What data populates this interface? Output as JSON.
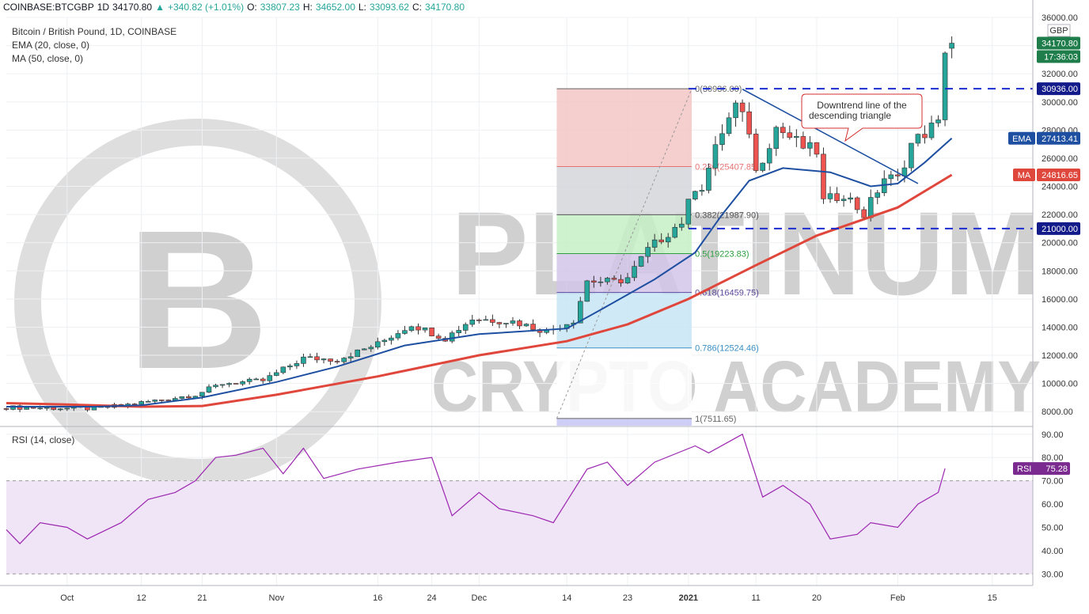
{
  "header": {
    "symbol": "COINBASE:BTCGBP",
    "interval": "1D",
    "last": "34170.80",
    "change": "+340.82 (+1.01%)",
    "open_label": "O:",
    "open": "33807.23",
    "high_label": "H:",
    "high": "34652.00",
    "low_label": "L:",
    "low": "33093.62",
    "close_label": "C:",
    "close": "34170.80"
  },
  "legend": {
    "title": "Bitcoin / British Pound, 1D, COINBASE",
    "ema": "EMA (20, close, 0)",
    "ma": "MA (50, close, 0)",
    "rsi": "RSI (14, close)"
  },
  "watermark": {
    "line1": "PLATINUM",
    "line2": "CRYPTO ACADEMY"
  },
  "annotation": {
    "line1": "Downtrend line of the",
    "line2": "descending triangle"
  },
  "colors": {
    "up": "#26a69a",
    "candle_up_fill": "#26a69a",
    "candle_down_fill": "#ef5350",
    "ema": "#1e4fa0",
    "ma": "#e0473c",
    "rsi": "#9c27b0",
    "rsi_band": "#f0e4f7",
    "level_line": "#1a2ccf",
    "price_tag": "#1e7d4a",
    "time_tag": "#1e7d4a"
  },
  "chart_data": {
    "type": "candlestick",
    "currency": "GBP",
    "price_axis": {
      "min": 7000,
      "max": 36000,
      "ticks": [
        "36000.00",
        "34000.00",
        "32000.00",
        "30000.00",
        "28000.00",
        "26000.00",
        "24000.00",
        "22000.00",
        "20000.00",
        "18000.00",
        "16000.00",
        "14000.00",
        "12000.00",
        "10000.00",
        "8000.00"
      ]
    },
    "rsi_axis": {
      "min": 25,
      "max": 93,
      "ticks": [
        "90.00",
        "80.00",
        "70.00",
        "60.00",
        "50.00",
        "40.00",
        "30.00"
      ],
      "band": [
        30,
        70
      ]
    },
    "time_axis": {
      "start": "2020-09-22",
      "end": "2021-02-21",
      "labels": [
        {
          "date": "2020-10-01",
          "text": "Oct"
        },
        {
          "date": "2020-10-12",
          "text": "12"
        },
        {
          "date": "2020-10-21",
          "text": "21"
        },
        {
          "date": "2020-11-01",
          "text": "Nov"
        },
        {
          "date": "2020-11-16",
          "text": "16"
        },
        {
          "date": "2020-11-24",
          "text": "24"
        },
        {
          "date": "2020-12-01",
          "text": "Dec"
        },
        {
          "date": "2020-12-14",
          "text": "14"
        },
        {
          "date": "2020-12-23",
          "text": "23"
        },
        {
          "date": "2021-01-01",
          "text": "2021"
        },
        {
          "date": "2021-01-11",
          "text": "11"
        },
        {
          "date": "2021-01-20",
          "text": "20"
        },
        {
          "date": "2021-02-01",
          "text": "Feb"
        },
        {
          "date": "2021-02-15",
          "text": "15"
        }
      ]
    },
    "close_anchors": [
      [
        "2020-09-22",
        8300
      ],
      [
        "2020-10-05",
        8200
      ],
      [
        "2020-10-10",
        8500
      ],
      [
        "2020-10-20",
        9200
      ],
      [
        "2020-10-24",
        10000
      ],
      [
        "2020-10-30",
        10200
      ],
      [
        "2020-11-05",
        11800
      ],
      [
        "2020-11-10",
        11700
      ],
      [
        "2020-11-16",
        12800
      ],
      [
        "2020-11-21",
        14200
      ],
      [
        "2020-11-26",
        13200
      ],
      [
        "2020-11-30",
        14600
      ],
      [
        "2020-12-06",
        14400
      ],
      [
        "2020-12-11",
        13700
      ],
      [
        "2020-12-15",
        14500
      ],
      [
        "2020-12-17",
        17300
      ],
      [
        "2020-12-21",
        17200
      ],
      [
        "2020-12-23",
        17500
      ],
      [
        "2020-12-26",
        19500
      ],
      [
        "2020-12-31",
        21500
      ],
      [
        "2021-01-02",
        24000
      ],
      [
        "2021-01-03",
        24000
      ],
      [
        "2021-01-06",
        27900
      ],
      [
        "2021-01-08",
        29700
      ],
      [
        "2021-01-10",
        28000
      ],
      [
        "2021-01-11",
        25000
      ],
      [
        "2021-01-14",
        28200
      ],
      [
        "2021-01-18",
        26800
      ],
      [
        "2021-01-20",
        26500
      ],
      [
        "2021-01-21",
        22900
      ],
      [
        "2021-01-24",
        23500
      ],
      [
        "2021-01-27",
        22000
      ],
      [
        "2021-01-30",
        24600
      ],
      [
        "2021-02-01",
        24500
      ],
      [
        "2021-02-03",
        27000
      ],
      [
        "2021-02-06",
        28200
      ],
      [
        "2021-02-07",
        28400
      ],
      [
        "2021-02-08",
        33830
      ],
      [
        "2021-02-09",
        34170.8
      ]
    ],
    "rsi_anchors": [
      [
        "2020-09-22",
        49
      ],
      [
        "2020-09-24",
        43
      ],
      [
        "2020-09-27",
        52
      ],
      [
        "2020-10-01",
        50
      ],
      [
        "2020-10-04",
        45
      ],
      [
        "2020-10-09",
        52
      ],
      [
        "2020-10-13",
        62
      ],
      [
        "2020-10-17",
        65
      ],
      [
        "2020-10-20",
        70
      ],
      [
        "2020-10-23",
        80
      ],
      [
        "2020-10-26",
        81
      ],
      [
        "2020-10-30",
        84
      ],
      [
        "2020-11-02",
        73
      ],
      [
        "2020-11-05",
        84
      ],
      [
        "2020-11-08",
        71
      ],
      [
        "2020-11-13",
        75
      ],
      [
        "2020-11-19",
        78
      ],
      [
        "2020-11-24",
        80
      ],
      [
        "2020-11-27",
        55
      ],
      [
        "2020-12-01",
        65
      ],
      [
        "2020-12-04",
        58
      ],
      [
        "2020-12-09",
        55
      ],
      [
        "2020-12-12",
        52
      ],
      [
        "2020-12-17",
        75
      ],
      [
        "2020-12-20",
        78
      ],
      [
        "2020-12-23",
        68
      ],
      [
        "2020-12-27",
        78
      ],
      [
        "2021-01-02",
        85
      ],
      [
        "2021-01-04",
        82
      ],
      [
        "2021-01-09",
        90
      ],
      [
        "2021-01-12",
        63
      ],
      [
        "2021-01-15",
        68
      ],
      [
        "2021-01-19",
        60
      ],
      [
        "2021-01-22",
        45
      ],
      [
        "2021-01-26",
        47
      ],
      [
        "2021-01-28",
        52
      ],
      [
        "2021-02-01",
        50
      ],
      [
        "2021-02-04",
        60
      ],
      [
        "2021-02-07",
        65
      ],
      [
        "2021-02-08",
        75.28
      ]
    ],
    "ema": {
      "name": "EMA",
      "last": "27413.41",
      "points": [
        [
          "2020-09-22",
          8350
        ],
        [
          "2020-10-05",
          8350
        ],
        [
          "2020-10-12",
          8450
        ],
        [
          "2020-10-21",
          9000
        ],
        [
          "2020-11-01",
          10100
        ],
        [
          "2020-11-10",
          11200
        ],
        [
          "2020-11-20",
          12700
        ],
        [
          "2020-12-01",
          13500
        ],
        [
          "2020-12-14",
          13900
        ],
        [
          "2020-12-20",
          15500
        ],
        [
          "2020-12-27",
          17400
        ],
        [
          "2021-01-02",
          19300
        ],
        [
          "2021-01-06",
          22000
        ],
        [
          "2021-01-10",
          24400
        ],
        [
          "2021-01-15",
          25300
        ],
        [
          "2021-01-22",
          25000
        ],
        [
          "2021-01-28",
          24000
        ],
        [
          "2021-02-01",
          24200
        ],
        [
          "2021-02-05",
          25700
        ],
        [
          "2021-02-09",
          27413.41
        ]
      ]
    },
    "ma": {
      "name": "MA",
      "last": "24816.65",
      "points": [
        [
          "2020-09-22",
          8600
        ],
        [
          "2020-10-01",
          8500
        ],
        [
          "2020-10-12",
          8350
        ],
        [
          "2020-10-21",
          8400
        ],
        [
          "2020-11-01",
          9200
        ],
        [
          "2020-11-16",
          10500
        ],
        [
          "2020-12-01",
          12000
        ],
        [
          "2020-12-14",
          13000
        ],
        [
          "2020-12-23",
          14200
        ],
        [
          "2021-01-01",
          16000
        ],
        [
          "2021-01-11",
          18400
        ],
        [
          "2021-01-20",
          20500
        ],
        [
          "2021-02-01",
          22500
        ],
        [
          "2021-02-09",
          24816.65
        ]
      ]
    },
    "rsi": {
      "name": "RSI",
      "last": "75.28"
    },
    "price_label": {
      "value": "34170.80",
      "countdown": "17:36:03"
    },
    "horizontal_levels": [
      {
        "value": 30936,
        "label": "30936.00"
      },
      {
        "value": 21000,
        "label": "21000.00"
      }
    ],
    "fibonacci": {
      "start_date": "2020-12-13",
      "end_date": "2021-01-01",
      "low": 7511.65,
      "high": 30936.0,
      "levels": [
        {
          "ratio": 0,
          "value": 30936.0,
          "label": "0(30936.00)",
          "color": "#666666",
          "fill": "#f3c6c6"
        },
        {
          "ratio": 0.236,
          "value": 25407.85,
          "label": "0.236(25407.85)",
          "color": "#e57373",
          "fill": "#d5d6da"
        },
        {
          "ratio": 0.382,
          "value": 21987.9,
          "label": "0.382(21987.90)",
          "color": "#555555",
          "fill": "#c6efc6"
        },
        {
          "ratio": 0.5,
          "value": 19223.83,
          "label": "0.5(19223.83)",
          "color": "#2e9e3e",
          "fill": "#d4c5ea"
        },
        {
          "ratio": 0.618,
          "value": 16459.75,
          "label": "0.618(16459.75)",
          "color": "#5e4a9e",
          "fill": "#c8e5f5"
        },
        {
          "ratio": 0.786,
          "value": 12524.46,
          "label": "0.786(12524.46)",
          "color": "#3a8fc4",
          "fill": "#ffffff"
        },
        {
          "ratio": 1,
          "value": 7511.65,
          "label": "1(7511.65)",
          "color": "#666666",
          "fill": "#c6c6f5"
        }
      ]
    },
    "trendline": {
      "start": [
        "2021-01-09",
        30900
      ],
      "end": [
        "2021-02-04",
        24200
      ]
    }
  }
}
